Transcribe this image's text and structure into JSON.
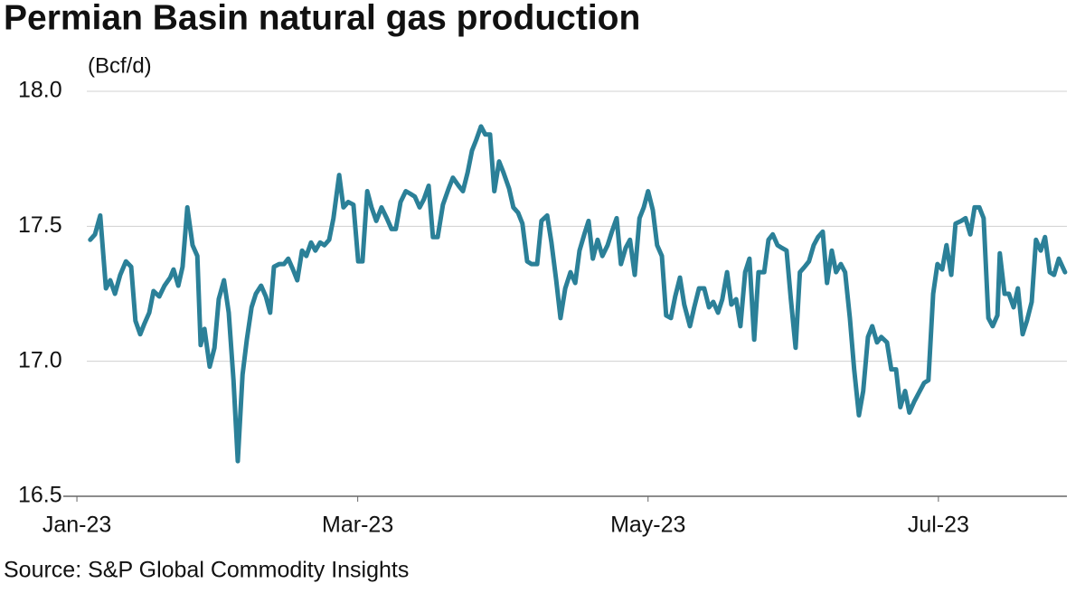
{
  "chart_data": {
    "type": "line",
    "title": "Permian Basin natural gas production",
    "y_label": "(Bcf/d)",
    "source": "Source: S&P Global Commodity Insights",
    "xlim": [
      -4,
      208
    ],
    "xticks": [
      {
        "value": 0,
        "label": "Jan-23"
      },
      {
        "value": 59,
        "label": "Mar-23"
      },
      {
        "value": 120,
        "label": "May-23"
      },
      {
        "value": 181,
        "label": "Jul-23"
      }
    ],
    "ylim": [
      16.5,
      18.0
    ],
    "yticks": [
      {
        "value": 16.5,
        "label": "16.5"
      },
      {
        "value": 17.0,
        "label": "17.0"
      },
      {
        "value": 17.5,
        "label": "17.5"
      },
      {
        "value": 18.0,
        "label": "18.0"
      }
    ],
    "grid": true,
    "series": [
      {
        "name": "Permian Basin",
        "color": "#2b8098",
        "x": [
          2.8,
          3.8,
          4.9,
          6.1,
          7.0,
          8.0,
          9.1,
          10.3,
          11.4,
          12.3,
          13.3,
          14.2,
          15.2,
          16.1,
          17.3,
          18.4,
          19.6,
          20.3,
          21.3,
          22.2,
          23.2,
          24.3,
          25.3,
          26.0,
          26.8,
          27.9,
          28.9,
          29.8,
          30.9,
          31.9,
          32.9,
          33.8,
          34.8,
          35.7,
          36.7,
          37.6,
          38.7,
          39.7,
          40.6,
          41.4,
          42.5,
          43.5,
          44.4,
          45.4,
          46.3,
          47.3,
          48.2,
          49.2,
          50.1,
          51.1,
          52.0,
          53.0,
          53.9,
          55.1,
          56.0,
          57.0,
          58.1,
          59.1,
          60.0,
          61.0,
          61.9,
          62.9,
          64.0,
          65.1,
          66.1,
          67.0,
          68.0,
          69.1,
          70.1,
          71.0,
          72.0,
          72.9,
          73.9,
          74.8,
          75.8,
          76.9,
          78.1,
          79.0,
          80.2,
          81.1,
          82.1,
          83.0,
          83.9,
          84.9,
          85.8,
          86.8,
          87.7,
          88.7,
          89.6,
          90.8,
          91.7,
          92.7,
          93.6,
          94.6,
          95.5,
          96.7,
          97.6,
          98.8,
          99.7,
          100.7,
          101.6,
          102.6,
          103.7,
          104.7,
          105.6,
          106.6,
          107.5,
          108.4,
          109.4,
          110.4,
          111.5,
          112.4,
          113.4,
          114.3,
          115.3,
          116.2,
          117.2,
          118.2,
          119.1,
          120.0,
          121.0,
          121.9,
          122.9,
          123.8,
          124.8,
          125.7,
          126.7,
          127.6,
          128.8,
          129.7,
          130.7,
          131.8,
          132.8,
          133.7,
          134.7,
          135.6,
          136.6,
          137.5,
          138.5,
          139.4,
          140.4,
          141.3,
          142.3,
          143.2,
          144.4,
          145.3,
          146.2,
          147.2,
          148.1,
          149.1,
          150.0,
          151.0,
          151.9,
          152.9,
          153.8,
          154.8,
          155.7,
          156.7,
          157.6,
          158.6,
          159.5,
          160.5,
          161.4,
          162.4,
          163.3,
          164.3,
          165.2,
          166.2,
          167.1,
          168.1,
          169.0,
          170.2,
          171.1,
          172.1,
          173.0,
          174.0,
          174.9,
          175.9,
          176.8,
          178.0,
          178.9,
          179.9,
          180.8,
          181.8,
          182.7,
          183.7,
          184.6,
          185.8,
          186.7,
          187.7,
          188.6,
          189.6,
          190.5,
          191.5,
          192.4,
          193.4,
          193.9,
          194.9,
          195.8,
          196.8,
          197.7,
          198.7,
          199.6,
          200.6,
          201.5,
          202.5,
          203.4,
          204.4,
          205.3,
          206.3,
          207.6
        ],
        "values": [
          17.45,
          17.47,
          17.54,
          17.27,
          17.3,
          17.25,
          17.32,
          17.37,
          17.35,
          17.15,
          17.1,
          17.14,
          17.18,
          17.26,
          17.24,
          17.28,
          17.31,
          17.34,
          17.28,
          17.35,
          17.57,
          17.43,
          17.39,
          17.06,
          17.12,
          16.98,
          17.05,
          17.23,
          17.3,
          17.18,
          16.93,
          16.63,
          16.95,
          17.08,
          17.2,
          17.25,
          17.28,
          17.24,
          17.18,
          17.35,
          17.36,
          17.36,
          17.38,
          17.34,
          17.3,
          17.41,
          17.39,
          17.44,
          17.41,
          17.44,
          17.43,
          17.45,
          17.53,
          17.69,
          17.57,
          17.59,
          17.58,
          17.37,
          17.37,
          17.63,
          17.57,
          17.52,
          17.57,
          17.53,
          17.49,
          17.49,
          17.59,
          17.63,
          17.62,
          17.61,
          17.57,
          17.6,
          17.65,
          17.46,
          17.46,
          17.58,
          17.64,
          17.68,
          17.65,
          17.63,
          17.7,
          17.78,
          17.82,
          17.87,
          17.84,
          17.84,
          17.63,
          17.74,
          17.7,
          17.64,
          17.57,
          17.55,
          17.51,
          17.37,
          17.36,
          17.36,
          17.52,
          17.54,
          17.44,
          17.3,
          17.16,
          17.27,
          17.33,
          17.29,
          17.41,
          17.47,
          17.52,
          17.38,
          17.45,
          17.39,
          17.43,
          17.48,
          17.53,
          17.36,
          17.42,
          17.45,
          17.32,
          17.53,
          17.57,
          17.63,
          17.56,
          17.43,
          17.39,
          17.17,
          17.16,
          17.24,
          17.31,
          17.21,
          17.13,
          17.2,
          17.27,
          17.27,
          17.2,
          17.22,
          17.18,
          17.23,
          17.33,
          17.21,
          17.23,
          17.13,
          17.33,
          17.38,
          17.08,
          17.33,
          17.33,
          17.45,
          17.47,
          17.43,
          17.42,
          17.41,
          17.23,
          17.05,
          17.33,
          17.35,
          17.37,
          17.43,
          17.46,
          17.48,
          17.29,
          17.41,
          17.33,
          17.36,
          17.33,
          17.16,
          16.97,
          16.8,
          16.89,
          17.09,
          17.13,
          17.07,
          17.09,
          17.07,
          16.97,
          16.97,
          16.83,
          16.89,
          16.81,
          16.85,
          16.88,
          16.92,
          16.93,
          17.25,
          17.36,
          17.34,
          17.43,
          17.32,
          17.51,
          17.52,
          17.53,
          17.47,
          17.57,
          17.57,
          17.53,
          17.16,
          17.13,
          17.17,
          17.4,
          17.25,
          17.25,
          17.2,
          17.27,
          17.1,
          17.15,
          17.22,
          17.45,
          17.41,
          17.46,
          17.33,
          17.32,
          17.38,
          17.33
        ]
      }
    ]
  }
}
